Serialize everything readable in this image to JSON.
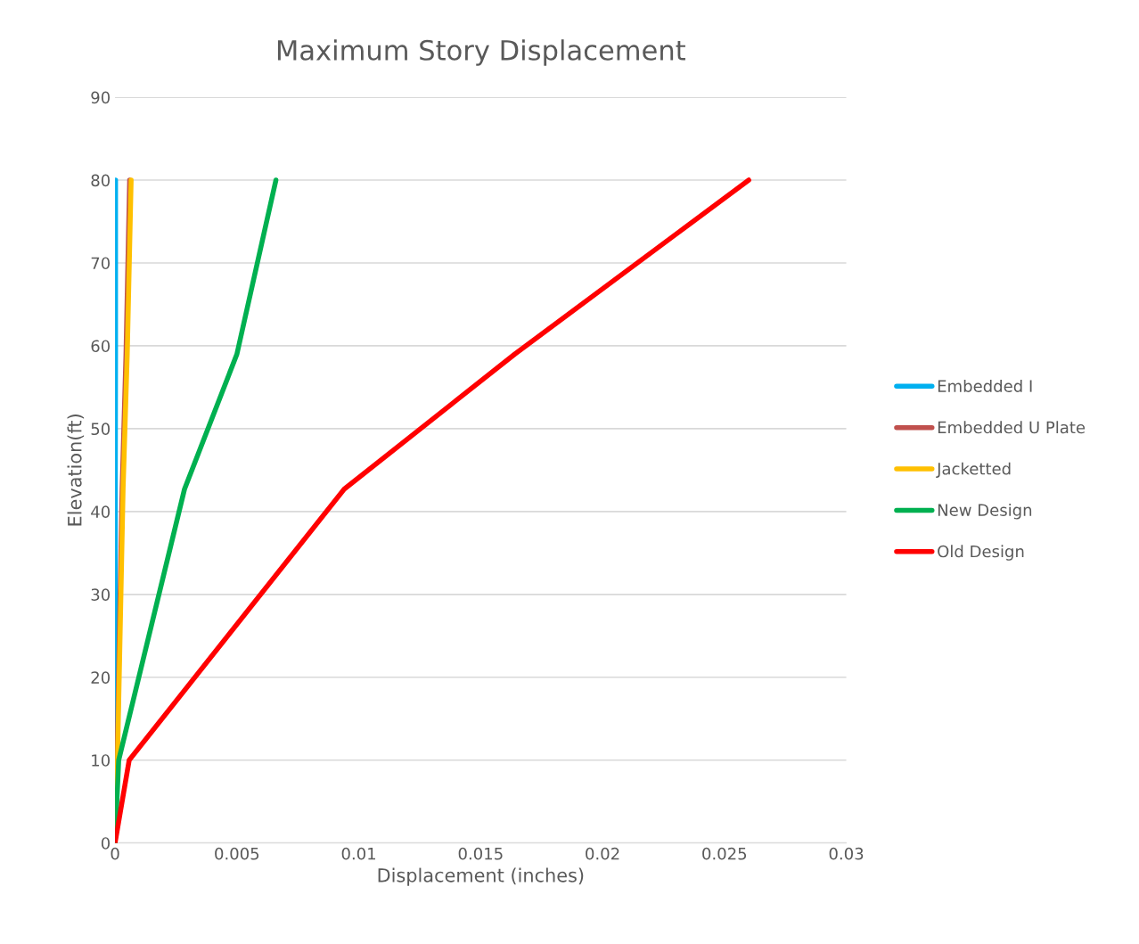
{
  "chart_data": {
    "type": "line",
    "title": "Maximum Story Displacement",
    "xlabel": "Displacement (inches)",
    "ylabel": "Elevation(ft)",
    "xlim": [
      0,
      0.03
    ],
    "xticks": [
      0,
      0.005,
      0.01,
      0.015,
      0.02,
      0.025,
      0.03
    ],
    "ylim": [
      0,
      90
    ],
    "yticks": [
      0,
      10,
      20,
      30,
      40,
      50,
      60,
      70,
      80,
      90
    ],
    "grid": "y",
    "legend": "right",
    "marker": "none",
    "line_style": "solid",
    "series": [
      {
        "name": "Embedded I",
        "color": "#00b0f0",
        "x": [
          0,
          0,
          1e-05,
          2e-05,
          2e-05
        ],
        "values": [
          0,
          10,
          42.7,
          59,
          80
        ]
      },
      {
        "name": "Embedded U Plate",
        "color": "#c0504d",
        "x": [
          0,
          8e-05,
          0.00029,
          0.00045,
          0.0006
        ],
        "values": [
          0,
          10,
          42.7,
          59,
          80
        ]
      },
      {
        "name": "Jacketted",
        "color": "#ffc000",
        "x": [
          0,
          0.0001,
          0.00033,
          0.0005,
          0.00066
        ],
        "values": [
          0,
          10,
          42.7,
          59,
          80
        ]
      },
      {
        "name": "New Design",
        "color": "#00b050",
        "x": [
          0,
          0.00015,
          0.00285,
          0.005,
          0.0066
        ],
        "values": [
          0,
          10,
          42.7,
          59,
          80
        ]
      },
      {
        "name": "Old Design",
        "color": "#ff0000",
        "x": [
          0,
          0.00058,
          0.0094,
          0.0164,
          0.026
        ],
        "values": [
          0,
          10,
          42.7,
          59,
          80
        ]
      }
    ]
  }
}
